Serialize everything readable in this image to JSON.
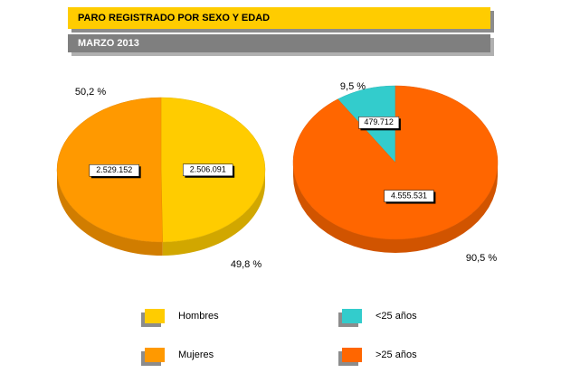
{
  "header": {
    "title": "PARO REGISTRADO POR SEXO Y EDAD",
    "subtitle": "MARZO 2013"
  },
  "chart_data": [
    {
      "type": "pie",
      "direction": "clockwise",
      "categories": [
        "Hombres",
        "Mujeres"
      ],
      "values": [
        2506091,
        2529152
      ],
      "value_labels": [
        "2.506.091",
        "2.529.152"
      ],
      "percent_labels": [
        "49,8 %",
        "50,2 %"
      ],
      "colors": [
        "#ffcc00",
        "#ff9900"
      ]
    },
    {
      "type": "pie",
      "direction": "counterclockwise",
      "categories": [
        "<25 años",
        ">25 años"
      ],
      "values": [
        479712,
        4555531
      ],
      "value_labels": [
        "479.712",
        "4.555.531"
      ],
      "percent_labels": [
        "9,5 %",
        "90,5 %"
      ],
      "colors": [
        "#33cccc",
        "#ff6600"
      ]
    }
  ]
}
